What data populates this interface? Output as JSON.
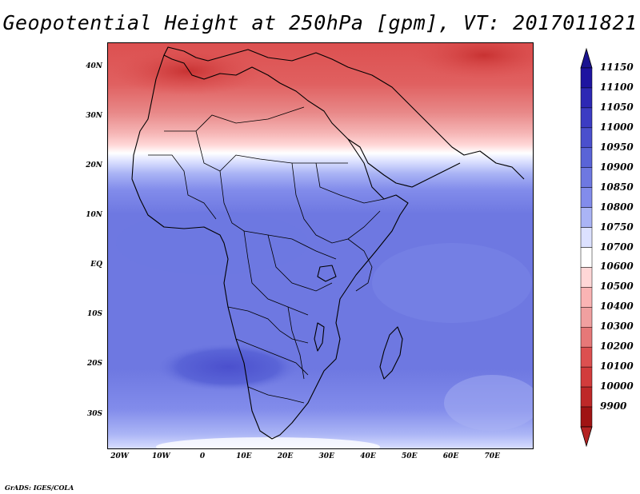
{
  "title": "Geopotential Height at 250hPa [gpm], VT: 2017011821",
  "footer": "GrADS: IGES/COLA",
  "map": {
    "lon_range": [
      -23,
      80
    ],
    "lat_range": [
      -37,
      45
    ],
    "lat_ticks": [
      "40N",
      "30N",
      "20N",
      "10N",
      "EQ",
      "10S",
      "20S",
      "30S"
    ],
    "lat_tick_values": [
      40,
      30,
      20,
      10,
      0,
      -10,
      -20,
      -30
    ],
    "lon_ticks": [
      "20W",
      "10W",
      "0",
      "10E",
      "20E",
      "30E",
      "40E",
      "50E",
      "60E",
      "70E"
    ],
    "lon_tick_values": [
      -20,
      -10,
      0,
      10,
      20,
      30,
      40,
      50,
      60,
      70
    ]
  },
  "legend": {
    "levels": [
      "11150",
      "11100",
      "11050",
      "11000",
      "10950",
      "10900",
      "10850",
      "10800",
      "10750",
      "10700",
      "10600",
      "10500",
      "10400",
      "10300",
      "10200",
      "10100",
      "10000",
      "9900"
    ],
    "colors": [
      "#1e14a0",
      "#2d28b4",
      "#3c3cc3",
      "#4b50cd",
      "#5a64d7",
      "#6e78e1",
      "#828ceb",
      "#aab4f5",
      "#dce1ff",
      "#ffffff",
      "#ffd7d7",
      "#fab4b4",
      "#f0a0a0",
      "#e67878",
      "#dc5050",
      "#d23c3c",
      "#be2828",
      "#a01414"
    ],
    "top_color": "#1a1490",
    "bottom_color": "#b42323"
  }
}
